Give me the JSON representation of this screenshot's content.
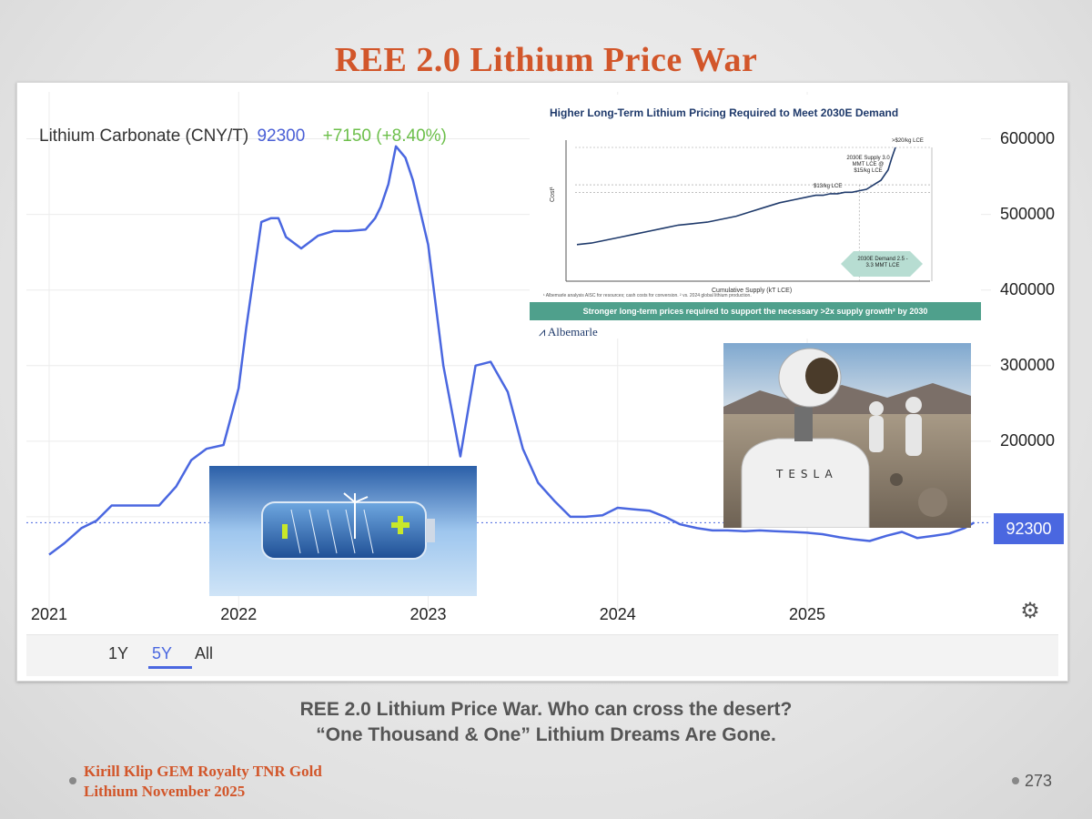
{
  "slide": {
    "title": "REE 2.0 Lithium Price War",
    "caption_line1": "REE 2.0 Lithium Price War. Who can cross the desert?",
    "caption_line2": "“One Thousand & One” Lithium Dreams Are Gone.",
    "author_line1": "Kirill Klip GEM Royalty TNR Gold",
    "author_line2": "Lithium November 2025",
    "page_number": "273",
    "title_color": "#d2562a"
  },
  "chart_header": {
    "name": "Lithium Carbonate (CNY/T)",
    "last": "92300",
    "change": "+7150 (+8.40%)"
  },
  "range_buttons": [
    {
      "label": "1Y",
      "active": false
    },
    {
      "label": "5Y",
      "active": true
    },
    {
      "label": "All",
      "active": false
    }
  ],
  "settings_icon": "gear-icon",
  "chart_data": [
    {
      "type": "line",
      "series": [
        {
          "color": "#4a67e0",
          "x": [
            2021.0,
            2021.08,
            2021.17,
            2021.25,
            2021.33,
            2021.42,
            2021.5,
            2021.58,
            2021.67,
            2021.75,
            2021.83,
            2021.92,
            2022.0,
            2022.04,
            2022.08,
            2022.12,
            2022.17,
            2022.21,
            2022.25,
            2022.33,
            2022.42,
            2022.5,
            2022.58,
            2022.67,
            2022.72,
            2022.75,
            2022.79,
            2022.83,
            2022.88,
            2022.92,
            2023.0,
            2023.08,
            2023.17,
            2023.25,
            2023.33,
            2023.42,
            2023.5,
            2023.58,
            2023.67,
            2023.75,
            2023.83,
            2023.92,
            2024.0,
            2024.08,
            2024.17,
            2024.25,
            2024.33,
            2024.42,
            2024.5,
            2024.58,
            2024.67,
            2024.75,
            2024.83,
            2024.92,
            2025.0,
            2025.08,
            2025.17,
            2025.25,
            2025.33,
            2025.42,
            2025.5,
            2025.58,
            2025.67,
            2025.75,
            2025.83,
            2025.88
          ],
          "y": [
            50000,
            65000,
            85000,
            95000,
            115000,
            115000,
            115000,
            115000,
            140000,
            175000,
            190000,
            195000,
            270000,
            350000,
            420000,
            490000,
            495000,
            495000,
            470000,
            455000,
            472000,
            478000,
            478000,
            480000,
            495000,
            510000,
            540000,
            590000,
            575000,
            545000,
            460000,
            300000,
            180000,
            300000,
            305000,
            265000,
            190000,
            145000,
            120000,
            100000,
            100000,
            102000,
            112000,
            110000,
            108000,
            100000,
            90000,
            85000,
            82000,
            82000,
            81000,
            82000,
            81000,
            80000,
            79000,
            77000,
            73000,
            70000,
            68000,
            75000,
            80000,
            72000,
            75000,
            78000,
            85000,
            92300
          ]
        }
      ],
      "x_ticks": [
        "2021",
        "2022",
        "2023",
        "2024",
        "2025"
      ],
      "x_tick_values": [
        2021,
        2022,
        2023,
        2024,
        2025
      ],
      "y_ticks": [
        "200000",
        "300000",
        "400000",
        "500000",
        "600000"
      ],
      "y_tick_values": [
        200000,
        300000,
        400000,
        500000,
        600000
      ],
      "xlim": [
        2020.88,
        2025.97
      ],
      "ylim": [
        0,
        650000
      ],
      "last_value_line": 92300,
      "grid": true
    },
    {
      "type": "line",
      "title": "Higher Long-Term Lithium Pricing Required to Meet 2030E Demand",
      "xlabel": "Cumulative Supply (kT LCE)",
      "ylabel": "Cost¹",
      "series": [
        {
          "color": "#1f3a6b",
          "x": [
            0,
            4,
            8,
            12,
            16,
            20,
            24,
            28,
            32,
            36,
            40,
            44,
            48,
            52,
            56,
            60,
            64,
            66,
            68,
            70,
            72,
            74,
            76,
            78,
            80,
            82,
            84,
            86,
            87,
            88
          ],
          "y": [
            5,
            6,
            8,
            10,
            12,
            14,
            16,
            18,
            19,
            20,
            22,
            24,
            27,
            30,
            33,
            35,
            37,
            38,
            38,
            39,
            39,
            40,
            40,
            41,
            42,
            45,
            48,
            55,
            63,
            70
          ]
        }
      ],
      "reference_lines": [
        "$13/kg LCE",
        "2030E Supply 3.0 MMT LCE @ $15/kg LCE",
        ">$20/kg LCE"
      ],
      "demand_band": "2030E Demand 2.5 - 3.3 MMT LCE",
      "banner": "Stronger long-term prices required to support the necessary >2x supply growth² by 2030",
      "footnote": "¹ Albemarle analysis AISC for resources; cash costs for conversion. ² vs. 2024 global lithium production.",
      "brand": "Albemarle"
    }
  ]
}
